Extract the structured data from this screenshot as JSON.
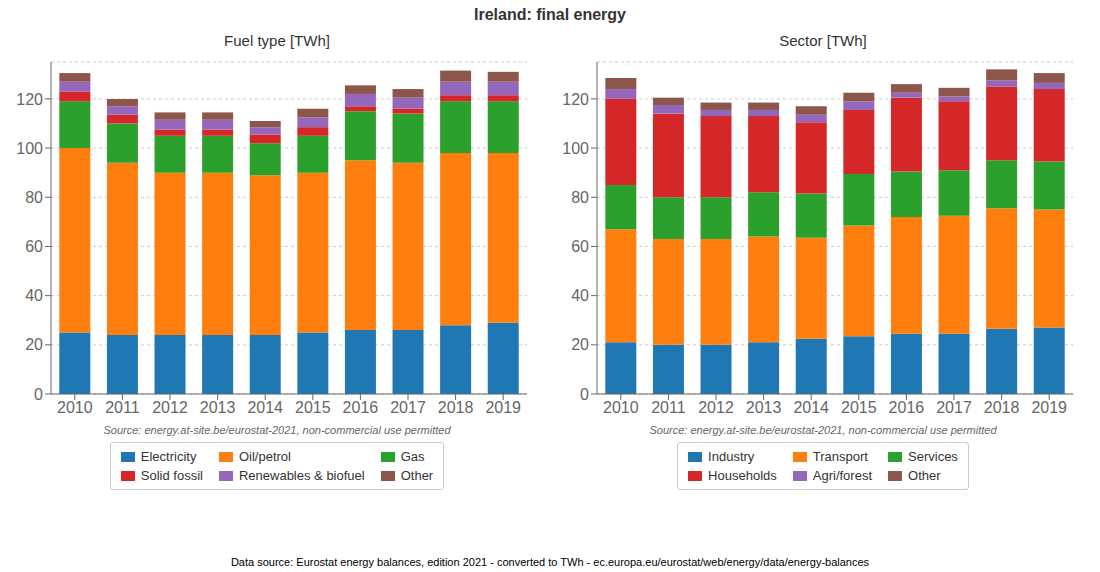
{
  "title": "Ireland: final energy",
  "annotations": [
    "Data source: Eurostat energy balances, edition 2021 - converted to TWh - ec.europa.eu/eurostat/web/energy/data/energy-balances"
  ],
  "chart_data": [
    {
      "type": "bar",
      "stacked": true,
      "title": "Fuel type [TWh]",
      "annotations": [
        "Source: energy.at-site.be/eurostat-2021, non-commercial use permitted"
      ],
      "categories": [
        "2010",
        "2011",
        "2012",
        "2013",
        "2014",
        "2015",
        "2016",
        "2017",
        "2018",
        "2019"
      ],
      "series": [
        {
          "name": "Electricity",
          "color": "#1f77b4",
          "values": [
            25.0,
            24.0,
            24.0,
            24.0,
            24.0,
            25.0,
            26.0,
            26.0,
            28.0,
            29.0
          ]
        },
        {
          "name": "Oil/petrol",
          "color": "#ff7f0e",
          "values": [
            75.0,
            70.0,
            66.0,
            66.0,
            65.0,
            65.0,
            69.0,
            68.0,
            70.0,
            69.0
          ]
        },
        {
          "name": "Gas",
          "color": "#2ca02c",
          "values": [
            19.0,
            16.0,
            15.0,
            15.0,
            13.0,
            15.0,
            20.0,
            20.0,
            21.0,
            21.0
          ]
        },
        {
          "name": "Solid fossil",
          "color": "#d62728",
          "values": [
            4.0,
            3.5,
            2.5,
            2.5,
            3.5,
            3.5,
            2.0,
            2.0,
            2.5,
            2.5
          ]
        },
        {
          "name": "Renewables & biofuel",
          "color": "#9467bd",
          "values": [
            4.0,
            3.5,
            4.0,
            4.0,
            3.0,
            4.0,
            5.0,
            4.5,
            5.5,
            5.5
          ]
        },
        {
          "name": "Other",
          "color": "#8c564b",
          "values": [
            3.5,
            3.0,
            3.0,
            3.0,
            2.5,
            3.5,
            3.5,
            3.5,
            4.5,
            4.0
          ]
        }
      ],
      "ylim": [
        0,
        135
      ],
      "yticks": [
        0,
        20,
        40,
        60,
        80,
        100,
        120
      ],
      "grid": true,
      "legend": "bottom"
    },
    {
      "type": "bar",
      "stacked": true,
      "title": "Sector [TWh]",
      "annotations": [
        "Source: energy.at-site.be/eurostat-2021, non-commercial use permitted"
      ],
      "categories": [
        "2010",
        "2011",
        "2012",
        "2013",
        "2014",
        "2015",
        "2016",
        "2017",
        "2018",
        "2019"
      ],
      "series": [
        {
          "name": "Industry",
          "color": "#1f77b4",
          "values": [
            21.0,
            20.0,
            20.0,
            21.0,
            22.5,
            23.5,
            24.5,
            24.5,
            26.5,
            27.0
          ]
        },
        {
          "name": "Transport",
          "color": "#ff7f0e",
          "values": [
            46.0,
            43.0,
            43.0,
            43.0,
            41.0,
            45.0,
            47.5,
            48.0,
            49.0,
            48.0
          ]
        },
        {
          "name": "Services",
          "color": "#2ca02c",
          "values": [
            18.0,
            17.0,
            17.0,
            18.0,
            18.0,
            21.0,
            18.5,
            18.5,
            19.5,
            19.5
          ]
        },
        {
          "name": "Households",
          "color": "#d62728",
          "values": [
            35.0,
            34.0,
            33.0,
            31.0,
            29.0,
            26.0,
            30.0,
            28.0,
            30.0,
            29.5
          ]
        },
        {
          "name": "Agri/forest",
          "color": "#9467bd",
          "values": [
            4.0,
            3.5,
            2.5,
            2.5,
            3.0,
            3.5,
            2.0,
            2.0,
            2.5,
            2.5
          ]
        },
        {
          "name": "Other",
          "color": "#8c564b",
          "values": [
            4.5,
            3.0,
            3.0,
            3.0,
            3.5,
            3.5,
            3.5,
            3.5,
            4.5,
            4.0
          ]
        }
      ],
      "ylim": [
        0,
        135
      ],
      "yticks": [
        0,
        20,
        40,
        60,
        80,
        100,
        120
      ],
      "grid": true,
      "legend": "bottom"
    }
  ]
}
